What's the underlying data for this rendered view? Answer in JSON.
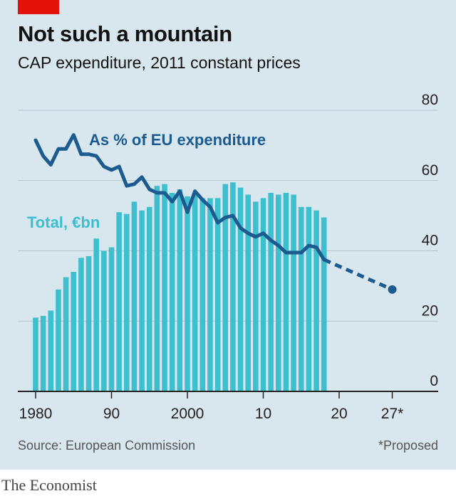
{
  "header": {
    "title": "Not such a mountain",
    "subtitle": "CAP expenditure, 2011 constant prices"
  },
  "footer": {
    "source": "Source: European Commission",
    "note": "*Proposed",
    "brand": "The Economist"
  },
  "colors": {
    "background": "#d8e6ee",
    "bars": "#3ebfd0",
    "line": "#1b5b8f",
    "accent": "#e3120b",
    "grid": "#b5c3cc"
  },
  "chart_data": {
    "type": "bar",
    "title": "Not such a mountain",
    "subtitle": "CAP expenditure, 2011 constant prices",
    "axis_right_ticks": [
      0,
      20,
      40,
      60,
      80
    ],
    "axis_right_tick_labels": [
      "0",
      "20",
      "40",
      "60",
      "80"
    ],
    "ylim": [
      0,
      80
    ],
    "xlim": [
      1980,
      2027
    ],
    "x_ticks": [
      1980,
      1990,
      2000,
      2010,
      2020,
      2027
    ],
    "x_tick_labels": [
      "1980",
      "90",
      "2000",
      "10",
      "20",
      "27*"
    ],
    "grid": true,
    "series": [
      {
        "name": "Total, €bn",
        "type": "bar",
        "x": [
          1980,
          1981,
          1982,
          1983,
          1984,
          1985,
          1986,
          1987,
          1988,
          1989,
          1990,
          1991,
          1992,
          1993,
          1994,
          1995,
          1996,
          1997,
          1998,
          1999,
          2000,
          2001,
          2002,
          2003,
          2004,
          2005,
          2006,
          2007,
          2008,
          2009,
          2010,
          2011,
          2012,
          2013,
          2014,
          2015,
          2016,
          2017,
          2018
        ],
        "values": [
          21,
          21.5,
          23,
          29,
          32.5,
          34,
          38,
          38.5,
          43.5,
          40,
          41,
          51,
          50.5,
          54,
          51.5,
          52.5,
          58.5,
          59,
          56.5,
          57.5,
          55.5,
          56,
          55,
          55,
          55,
          59,
          59.5,
          58,
          56,
          54,
          55,
          56.5,
          56,
          56.5,
          56,
          52.5,
          52.5,
          51.5,
          49.5
        ]
      },
      {
        "name": "As % of EU expenditure",
        "type": "line",
        "x": [
          1980,
          1981,
          1982,
          1983,
          1984,
          1985,
          1986,
          1987,
          1988,
          1989,
          1990,
          1991,
          1992,
          1993,
          1994,
          1995,
          1996,
          1997,
          1998,
          1999,
          2000,
          2001,
          2002,
          2003,
          2004,
          2005,
          2006,
          2007,
          2008,
          2009,
          2010,
          2011,
          2012,
          2013,
          2014,
          2015,
          2016,
          2017,
          2018
        ],
        "values": [
          71.5,
          67,
          64.5,
          69,
          69,
          73,
          67.5,
          67.5,
          67,
          64,
          63,
          64,
          58.5,
          59,
          61,
          57.5,
          56.5,
          56.5,
          54,
          57,
          51,
          57,
          54.5,
          52.5,
          48,
          49.5,
          50,
          46.5,
          45,
          44,
          45,
          43,
          41.5,
          39.5,
          39.5,
          39.5,
          41.5,
          41,
          37.5
        ],
        "projection": {
          "x": [
            2018,
            2027
          ],
          "values": [
            37.5,
            29
          ],
          "label": "*Proposed"
        }
      }
    ]
  }
}
